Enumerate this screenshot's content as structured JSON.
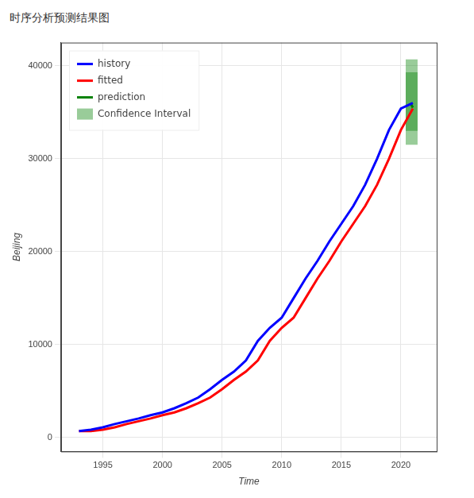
{
  "chart_data": {
    "type": "line",
    "title": "时序分析预测结果图",
    "x_label": "Time",
    "y_label": "Beijing",
    "series": [
      {
        "name": "history",
        "color": "blue",
        "x": [
          1993,
          1994,
          1995,
          1996,
          1997,
          1998,
          1999,
          2000,
          2001,
          2002,
          2003,
          2004,
          2005,
          2006,
          2007,
          2008,
          2009,
          2010,
          2011,
          2012,
          2013,
          2014,
          2015,
          2016,
          2017,
          2018,
          2019,
          2020,
          2021
        ],
        "values": [
          700,
          850,
          1100,
          1450,
          1750,
          2050,
          2400,
          2700,
          3150,
          3700,
          4300,
          5200,
          6200,
          7100,
          8300,
          10400,
          11800,
          12900,
          15000,
          17100,
          19000,
          21100,
          23000,
          24900,
          27200,
          30000,
          33100,
          35400,
          36000
        ]
      },
      {
        "name": "fitted",
        "color": "red",
        "x": [
          1993,
          1994,
          1995,
          1996,
          1997,
          1998,
          1999,
          2000,
          2001,
          2002,
          2003,
          2004,
          2005,
          2006,
          2007,
          2008,
          2009,
          2010,
          2011,
          2012,
          2013,
          2014,
          2015,
          2016,
          2017,
          2018,
          2019,
          2020,
          2021
        ],
        "values": [
          700,
          700,
          850,
          1100,
          1450,
          1750,
          2050,
          2400,
          2700,
          3150,
          3700,
          4300,
          5200,
          6200,
          7100,
          8300,
          10400,
          11800,
          12900,
          15000,
          17100,
          19000,
          21100,
          23000,
          24900,
          27200,
          30000,
          33100,
          35400
        ]
      },
      {
        "name": "prediction",
        "color": "green",
        "x": [
          2020.8,
          2021
        ],
        "values": [
          36000,
          35500
        ]
      }
    ],
    "confidence_interval": {
      "name": "Confidence Interval",
      "color": "green",
      "bands": [
        {
          "x": [
            2020.4,
            2021.4
          ],
          "lower": 31500,
          "upper": 40700
        },
        {
          "x": [
            2020.4,
            2021.4
          ],
          "lower": 33000,
          "upper": 39300
        }
      ]
    },
    "xlim": [
      1991.5,
      2023
    ],
    "xticks": [
      1995,
      2000,
      2005,
      2010,
      2015,
      2020
    ],
    "ylim": [
      -1500,
      42500
    ],
    "yticks": [
      0,
      10000,
      20000,
      30000,
      40000
    ],
    "grid": true,
    "legend": "top-left"
  }
}
